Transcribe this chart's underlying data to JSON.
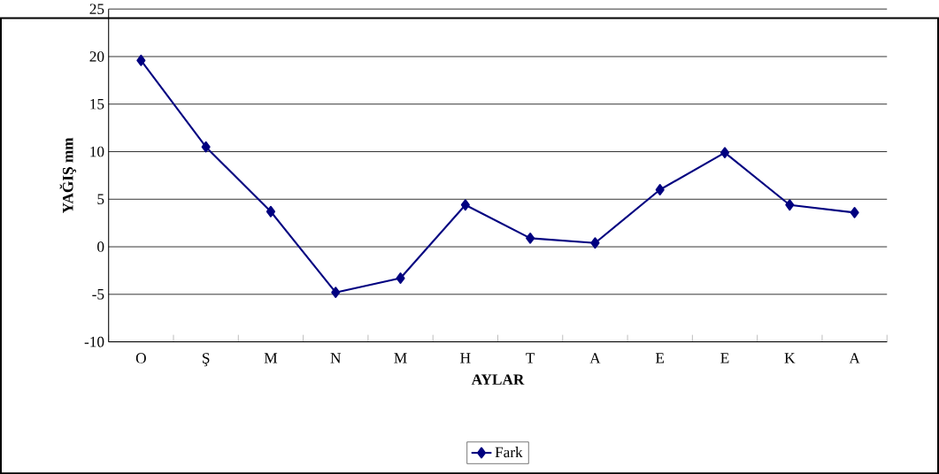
{
  "chart_data": {
    "type": "line",
    "xlabel": "AYLAR",
    "ylabel": "YAĞIŞ mm",
    "categories": [
      "O",
      "Ş",
      "M",
      "N",
      "M",
      "H",
      "T",
      "A",
      "E",
      "E",
      "K",
      "A"
    ],
    "series": [
      {
        "name": "Fark",
        "color": "#000080",
        "values": [
          19.6,
          10.5,
          3.7,
          -4.8,
          -3.3,
          4.4,
          0.9,
          0.4,
          6.0,
          9.9,
          4.4,
          3.6
        ]
      }
    ],
    "ylim": [
      -10,
      25
    ],
    "yticks": [
      -10,
      -5,
      0,
      5,
      10,
      15,
      20,
      25
    ],
    "grid": "y",
    "legend": "bottom",
    "marker": "diamond",
    "line_style": "solid"
  }
}
